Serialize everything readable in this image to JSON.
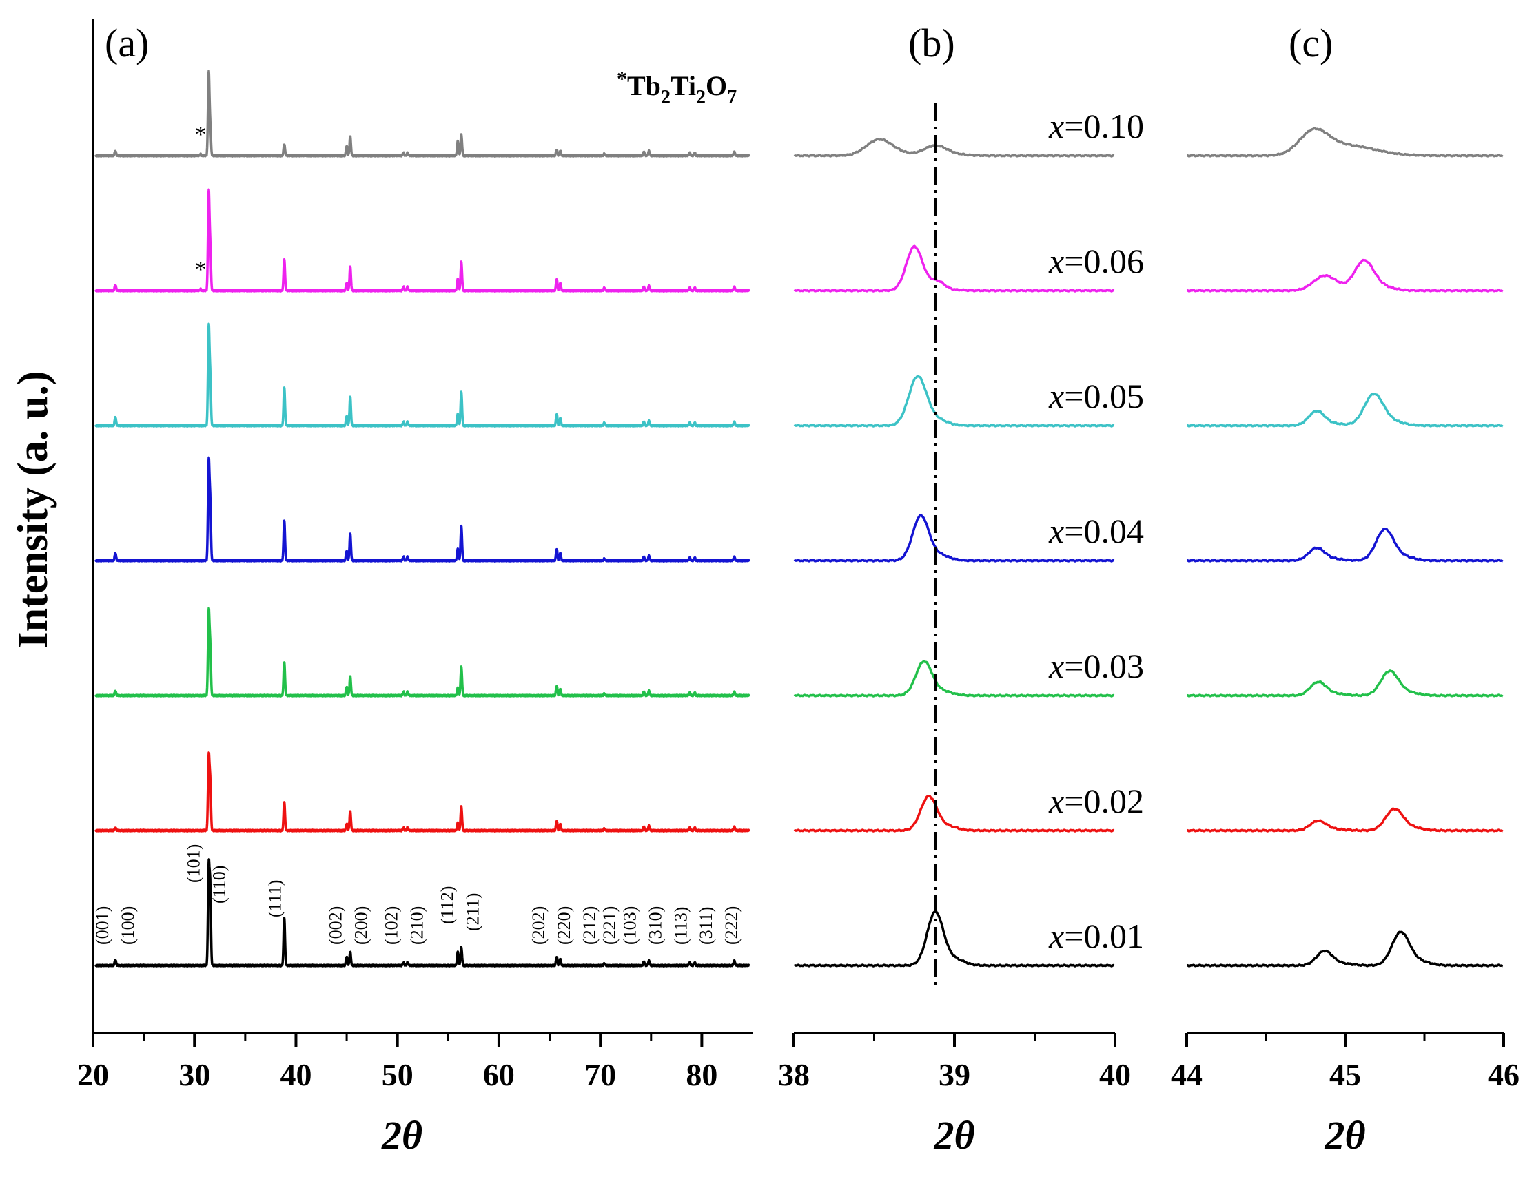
{
  "chart_data": {
    "type": "line",
    "ylabel": "Intensity (a. u.)",
    "xlabel": "2θ",
    "series_colors": {
      "x=0.01": "#000000",
      "x=0.02": "#ee1111",
      "x=0.03": "#22c04a",
      "x=0.04": "#1414d2",
      "x=0.05": "#3cc2c6",
      "x=0.06": "#ee22ee",
      "x=0.10": "#808080"
    },
    "panels": [
      {
        "id": "a",
        "label": "(a)",
        "xlabel": "2θ",
        "xlim": [
          20,
          85
        ],
        "xticks": [
          20,
          30,
          40,
          50,
          60,
          70,
          80
        ],
        "xtick_labels": [
          "20",
          "30",
          "40",
          "50",
          "60",
          "70",
          "80"
        ],
        "annotation": "*Tb2Ti2O7",
        "impurity_marker": "*",
        "impurity_peak_2theta": 30.6,
        "hkl_labels": [
          {
            "text": "(001)",
            "x": 21.5
          },
          {
            "text": "(100)",
            "x": 24.0
          },
          {
            "text": "(101)",
            "x": 30.5
          },
          {
            "text": "(110)",
            "x": 33.0
          },
          {
            "text": "(111)",
            "x": 38.5
          },
          {
            "text": "(002)",
            "x": 44.5
          },
          {
            "text": "(200)",
            "x": 47.0
          },
          {
            "text": "(102)",
            "x": 50.0
          },
          {
            "text": "(210)",
            "x": 52.5
          },
          {
            "text": "(112)",
            "x": 55.5
          },
          {
            "text": "(211)",
            "x": 58.0
          },
          {
            "text": "(202)",
            "x": 64.5
          },
          {
            "text": "(220)",
            "x": 67.0
          },
          {
            "text": "(212)",
            "x": 69.5
          },
          {
            "text": "(221)",
            "x": 71.5
          },
          {
            "text": "(103)",
            "x": 73.5
          },
          {
            "text": "(310)",
            "x": 76.0
          },
          {
            "text": "(113)",
            "x": 78.5
          },
          {
            "text": "(311)",
            "x": 81.0
          },
          {
            "text": "(222)",
            "x": 83.5
          }
        ],
        "peaks_2theta": [
          22.2,
          31.4,
          31.55,
          38.85,
          45.0,
          45.35,
          50.6,
          51.0,
          55.95,
          56.3,
          65.7,
          66.05,
          70.4,
          74.3,
          74.8,
          78.8,
          79.3,
          83.2
        ],
        "series": [
          {
            "name": "x=0.01",
            "offset": 0,
            "peak_heights": [
              0.06,
              1.0,
              0.8,
              0.5,
              0.09,
              0.14,
              0.03,
              0.03,
              0.14,
              0.19,
              0.09,
              0.07,
              0.02,
              0.04,
              0.05,
              0.03,
              0.03,
              0.05
            ]
          },
          {
            "name": "x=0.02",
            "offset": 1,
            "peak_heights": [
              0.03,
              0.75,
              0.5,
              0.3,
              0.07,
              0.2,
              0.03,
              0.03,
              0.08,
              0.25,
              0.1,
              0.07,
              0.02,
              0.04,
              0.05,
              0.03,
              0.03,
              0.04
            ]
          },
          {
            "name": "x=0.03",
            "offset": 2,
            "peak_heights": [
              0.05,
              0.85,
              0.5,
              0.35,
              0.09,
              0.2,
              0.04,
              0.04,
              0.08,
              0.3,
              0.1,
              0.07,
              0.02,
              0.04,
              0.05,
              0.03,
              0.03,
              0.04
            ]
          },
          {
            "name": "x=0.04",
            "offset": 3,
            "peak_heights": [
              0.08,
              1.0,
              0.6,
              0.42,
              0.1,
              0.28,
              0.04,
              0.04,
              0.12,
              0.36,
              0.12,
              0.08,
              0.02,
              0.04,
              0.05,
              0.03,
              0.03,
              0.04
            ]
          },
          {
            "name": "x=0.05",
            "offset": 4,
            "peak_heights": [
              0.09,
              1.0,
              0.5,
              0.4,
              0.1,
              0.3,
              0.04,
              0.04,
              0.12,
              0.35,
              0.12,
              0.08,
              0.03,
              0.04,
              0.05,
              0.03,
              0.03,
              0.04
            ]
          },
          {
            "name": "x=0.06",
            "offset": 5,
            "peak_heights": [
              0.06,
              1.0,
              0.45,
              0.33,
              0.08,
              0.25,
              0.04,
              0.04,
              0.12,
              0.3,
              0.12,
              0.08,
              0.03,
              0.04,
              0.05,
              0.03,
              0.03,
              0.04
            ]
          },
          {
            "name": "x=0.10",
            "offset": 6,
            "peak_heights": [
              0.05,
              0.85,
              0.3,
              0.12,
              0.1,
              0.2,
              0.03,
              0.03,
              0.15,
              0.22,
              0.06,
              0.05,
              0.02,
              0.04,
              0.05,
              0.03,
              0.03,
              0.04
            ]
          }
        ]
      },
      {
        "id": "b",
        "label": "(b)",
        "xlabel": "2θ",
        "xlim": [
          38,
          40
        ],
        "xticks": [
          38,
          39,
          40
        ],
        "xtick_labels": [
          "38",
          "39",
          "40"
        ],
        "reference_line_2theta": 38.88,
        "series": [
          {
            "name": "x=0.01",
            "offset": 0,
            "peaks": [
              [
                38.88,
                0.55,
                0.05
              ]
            ]
          },
          {
            "name": "x=0.02",
            "offset": 1,
            "peaks": [
              [
                38.84,
                0.35,
                0.05
              ]
            ]
          },
          {
            "name": "x=0.03",
            "offset": 2,
            "peaks": [
              [
                38.81,
                0.35,
                0.05
              ]
            ]
          },
          {
            "name": "x=0.04",
            "offset": 3,
            "peaks": [
              [
                38.79,
                0.46,
                0.05
              ]
            ]
          },
          {
            "name": "x=0.05",
            "offset": 4,
            "peaks": [
              [
                38.77,
                0.5,
                0.055
              ]
            ]
          },
          {
            "name": "x=0.06",
            "offset": 5,
            "peaks": [
              [
                38.75,
                0.45,
                0.05
              ],
              [
                38.9,
                0.05,
                0.04
              ]
            ]
          },
          {
            "name": "x=0.10",
            "offset": 6,
            "peaks": [
              [
                38.53,
                0.16,
                0.08
              ],
              [
                38.88,
                0.1,
                0.07
              ]
            ]
          }
        ]
      },
      {
        "id": "c",
        "label": "(c)",
        "xlabel": "2θ",
        "xlim": [
          44,
          46
        ],
        "xticks": [
          44,
          45,
          46
        ],
        "xtick_labels": [
          "44",
          "45",
          "46"
        ],
        "series": [
          {
            "name": "x=0.01",
            "offset": 0,
            "peaks": [
              [
                44.87,
                0.15,
                0.05
              ],
              [
                45.35,
                0.34,
                0.055
              ]
            ]
          },
          {
            "name": "x=0.02",
            "offset": 1,
            "peaks": [
              [
                44.83,
                0.1,
                0.05
              ],
              [
                45.31,
                0.22,
                0.055
              ]
            ]
          },
          {
            "name": "x=0.03",
            "offset": 2,
            "peaks": [
              [
                44.83,
                0.14,
                0.05
              ],
              [
                45.28,
                0.25,
                0.055
              ]
            ]
          },
          {
            "name": "x=0.04",
            "offset": 3,
            "peaks": [
              [
                44.82,
                0.13,
                0.05
              ],
              [
                45.25,
                0.32,
                0.055
              ]
            ]
          },
          {
            "name": "x=0.05",
            "offset": 4,
            "peaks": [
              [
                44.82,
                0.15,
                0.05
              ],
              [
                45.18,
                0.32,
                0.06
              ]
            ]
          },
          {
            "name": "x=0.06",
            "offset": 5,
            "peaks": [
              [
                44.87,
                0.15,
                0.07
              ],
              [
                45.12,
                0.3,
                0.06
              ]
            ]
          },
          {
            "name": "x=0.10",
            "offset": 6,
            "peaks": [
              [
                44.8,
                0.24,
                0.09
              ],
              [
                45.05,
                0.08,
                0.15
              ]
            ]
          }
        ]
      }
    ],
    "sample_labels": [
      "x=0.10",
      "x=0.06",
      "x=0.05",
      "x=0.04",
      "x=0.03",
      "x=0.02",
      "x=0.01"
    ]
  }
}
